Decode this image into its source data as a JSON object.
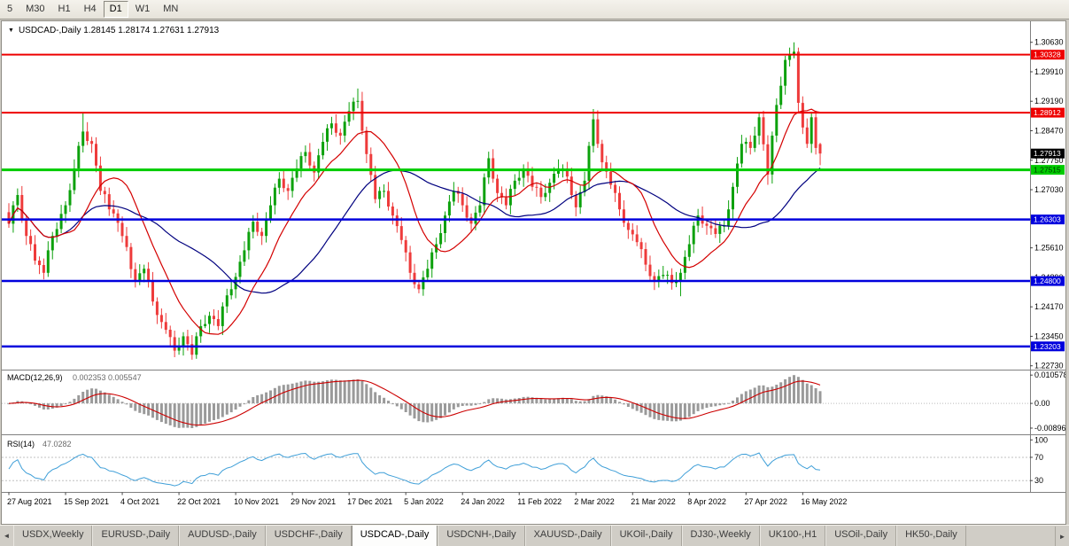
{
  "toolbar": {
    "timeframes": [
      "5",
      "M30",
      "H1",
      "H4",
      "D1",
      "W1",
      "MN"
    ],
    "active": "D1"
  },
  "chart": {
    "dropdown_icon": "▼",
    "header": "USDCAD-,Daily 1.28145 1.28174 1.27631 1.27913"
  },
  "chart_data": {
    "type": "candlestick",
    "symbol": "USDCAD-",
    "timeframe": "Daily",
    "current": {
      "open": "1.28145",
      "high": "1.28174",
      "low": "1.27631",
      "close": "1.27913"
    },
    "price_axis": {
      "range": {
        "max": 1.311,
        "min": 1.2268
      },
      "labels": [
        "1.30630",
        "1.29910",
        "1.29190",
        "1.28470",
        "1.27750",
        "1.27030",
        "1.26310",
        "1.25610",
        "1.24890",
        "1.24170",
        "1.23450",
        "1.22730"
      ]
    },
    "hlines": [
      {
        "price": 1.30328,
        "label": "1.30328",
        "color": "#ee0000",
        "width": 2,
        "badge_text_color": "#ffffff"
      },
      {
        "price": 1.28912,
        "label": "1.28912",
        "color": "#ee0000",
        "width": 2,
        "badge_text_color": "#ffffff"
      },
      {
        "price": 1.27515,
        "label": "1.27515",
        "color": "#00cc00",
        "width": 3,
        "badge_text_color": "#003300"
      },
      {
        "price": 1.26303,
        "label": "1.26303",
        "color": "#0000dd",
        "width": 2.5,
        "badge_text_color": "#ffffff"
      },
      {
        "price": 1.248,
        "label": "1.24800",
        "color": "#0000dd",
        "width": 2.5,
        "badge_text_color": "#ffffff"
      },
      {
        "price": 1.23203,
        "label": "1.23203",
        "color": "#0000dd",
        "width": 2.5,
        "badge_text_color": "#ffffff"
      }
    ],
    "current_price": {
      "price": 1.27913,
      "label": "1.27913",
      "badge_color": "#000000"
    },
    "time_axis": [
      "27 Aug 2021",
      "15 Sep 2021",
      "4 Oct 2021",
      "22 Oct 2021",
      "10 Nov 2021",
      "29 Nov 2021",
      "17 Dec 2021",
      "5 Jan 2022",
      "24 Jan 2022",
      "11 Feb 2022",
      "2 Mar 2022",
      "21 Mar 2022",
      "8 Apr 2022",
      "27 Apr 2022",
      "16 May 2022"
    ],
    "colors": {
      "up": "#0ca10c",
      "down": "#ee3b3b",
      "ma_fast": "#d40000",
      "ma_slow": "#00007f",
      "macd_hist": "#9a9a9a",
      "macd_signal": "#cc0000",
      "rsi": "#3f9fd8"
    },
    "indicators": {
      "macd": {
        "label": "MACD(12,26,9)",
        "values": "0.002353 0.005547",
        "scale_labels": [
          "0.010578",
          "0.00",
          "-0.00896"
        ]
      },
      "rsi": {
        "label": "RSI(14)",
        "value": "47.0282",
        "scale_labels": [
          "100",
          "70",
          "30"
        ],
        "levels": [
          70,
          30
        ]
      }
    },
    "candles": [
      [
        1.2648,
        1.267,
        1.261,
        1.262
      ],
      [
        1.262,
        1.2675,
        1.2598,
        1.2665
      ],
      [
        1.2665,
        1.2706,
        1.2649,
        1.269
      ],
      [
        1.269,
        1.2712,
        1.2622,
        1.2632
      ],
      [
        1.2632,
        1.2642,
        1.2568,
        1.259
      ],
      [
        1.259,
        1.2606,
        1.2554,
        1.257
      ],
      [
        1.257,
        1.2592,
        1.252,
        1.253
      ],
      [
        1.253,
        1.254,
        1.2497,
        1.2519
      ],
      [
        1.2519,
        1.2535,
        1.2484,
        1.25
      ],
      [
        1.25,
        1.2577,
        1.249,
        1.2555
      ],
      [
        1.2555,
        1.26,
        1.2533,
        1.259
      ],
      [
        1.259,
        1.2623,
        1.2574,
        1.2607
      ],
      [
        1.2607,
        1.2666,
        1.2597,
        1.2644
      ],
      [
        1.2644,
        1.2675,
        1.2622,
        1.2665
      ],
      [
        1.2665,
        1.2718,
        1.2649,
        1.2702
      ],
      [
        1.2702,
        1.2777,
        1.2692,
        1.2755
      ],
      [
        1.2755,
        1.282,
        1.2733,
        1.281
      ],
      [
        1.281,
        1.289,
        1.2794,
        1.2845
      ],
      [
        1.2845,
        1.2868,
        1.2812,
        1.2822
      ],
      [
        1.2822,
        1.2832,
        1.2793,
        1.2815
      ],
      [
        1.2815,
        1.2831,
        1.2746,
        1.2762
      ],
      [
        1.2762,
        1.2784,
        1.269,
        1.27
      ],
      [
        1.27,
        1.271,
        1.267,
        1.2692
      ],
      [
        1.2692,
        1.2708,
        1.2639,
        1.2655
      ],
      [
        1.2655,
        1.2677,
        1.2635,
        1.2645
      ],
      [
        1.2645,
        1.2655,
        1.26,
        1.2622
      ],
      [
        1.2622,
        1.2638,
        1.2574,
        1.259
      ],
      [
        1.259,
        1.2612,
        1.2553,
        1.2563
      ],
      [
        1.2563,
        1.2573,
        1.2487,
        1.2509
      ],
      [
        1.2509,
        1.2525,
        1.2464,
        1.248
      ],
      [
        1.248,
        1.2521,
        1.247,
        1.2499
      ],
      [
        1.2499,
        1.252,
        1.2477,
        1.251
      ],
      [
        1.251,
        1.2526,
        1.2464,
        1.248
      ],
      [
        1.248,
        1.2502,
        1.242,
        1.243
      ],
      [
        1.243,
        1.244,
        1.2375,
        1.2397
      ],
      [
        1.2397,
        1.2413,
        1.2364,
        1.238
      ],
      [
        1.238,
        1.2402,
        1.2351,
        1.2361
      ],
      [
        1.2361,
        1.2371,
        1.2321,
        1.2343
      ],
      [
        1.2343,
        1.2359,
        1.2294,
        1.231
      ],
      [
        1.231,
        1.2342,
        1.23,
        1.232
      ],
      [
        1.232,
        1.2355,
        1.2298,
        1.2345
      ],
      [
        1.2345,
        1.2361,
        1.231,
        1.2326
      ],
      [
        1.2326,
        1.2348,
        1.2288,
        1.23
      ],
      [
        1.23,
        1.2355,
        1.229,
        1.2345
      ],
      [
        1.2345,
        1.2386,
        1.2329,
        1.237
      ],
      [
        1.237,
        1.2397,
        1.2365,
        1.2375
      ],
      [
        1.2375,
        1.2405,
        1.2353,
        1.2395
      ],
      [
        1.2395,
        1.2411,
        1.2371,
        1.2387
      ],
      [
        1.2387,
        1.2409,
        1.236,
        1.237
      ],
      [
        1.237,
        1.2428,
        1.2348,
        1.2418
      ],
      [
        1.2418,
        1.2461,
        1.2402,
        1.2445
      ],
      [
        1.2445,
        1.2482,
        1.2435,
        1.246
      ],
      [
        1.246,
        1.25,
        1.2438,
        1.249
      ],
      [
        1.249,
        1.2543,
        1.2474,
        1.2527
      ],
      [
        1.2527,
        1.2577,
        1.2517,
        1.2555
      ],
      [
        1.2555,
        1.261,
        1.2533,
        1.26
      ],
      [
        1.26,
        1.2641,
        1.2584,
        1.2625
      ],
      [
        1.2625,
        1.2647,
        1.259,
        1.26
      ],
      [
        1.26,
        1.261,
        1.2568,
        1.259
      ],
      [
        1.259,
        1.2648,
        1.2574,
        1.2632
      ],
      [
        1.2632,
        1.2687,
        1.2622,
        1.2665
      ],
      [
        1.2665,
        1.2718,
        1.2643,
        1.2708
      ],
      [
        1.2708,
        1.2746,
        1.2692,
        1.273
      ],
      [
        1.273,
        1.2752,
        1.2697,
        1.2707
      ],
      [
        1.2707,
        1.2717,
        1.2678,
        1.27
      ],
      [
        1.27,
        1.2748,
        1.2684,
        1.2732
      ],
      [
        1.2732,
        1.2777,
        1.2722,
        1.2755
      ],
      [
        1.2755,
        1.2795,
        1.2733,
        1.2785
      ],
      [
        1.2785,
        1.2811,
        1.2769,
        1.2795
      ],
      [
        1.2795,
        1.2817,
        1.2752,
        1.2762
      ],
      [
        1.2762,
        1.2772,
        1.2723,
        1.2745
      ],
      [
        1.2745,
        1.2803,
        1.2729,
        1.2787
      ],
      [
        1.2787,
        1.2842,
        1.2777,
        1.282
      ],
      [
        1.282,
        1.2863,
        1.2798,
        1.2853
      ],
      [
        1.2853,
        1.2881,
        1.2837,
        1.2865
      ],
      [
        1.2865,
        1.2887,
        1.2832,
        1.2842
      ],
      [
        1.2842,
        1.2852,
        1.2813,
        1.2835
      ],
      [
        1.2835,
        1.2885,
        1.2819,
        1.2869
      ],
      [
        1.2869,
        1.2917,
        1.2859,
        1.2895
      ],
      [
        1.2895,
        1.2928,
        1.2873,
        1.2918
      ],
      [
        1.2918,
        1.295,
        1.2902,
        1.292
      ],
      [
        1.292,
        1.2942,
        1.2837,
        1.2847
      ],
      [
        1.2847,
        1.2857,
        1.2768,
        1.279
      ],
      [
        1.279,
        1.2806,
        1.2723,
        1.2739
      ],
      [
        1.2739,
        1.2761,
        1.267,
        1.268
      ],
      [
        1.268,
        1.271,
        1.2658,
        1.27
      ],
      [
        1.27,
        1.2716,
        1.2684,
        1.27
      ],
      [
        1.27,
        1.2722,
        1.2652,
        1.2662
      ],
      [
        1.2662,
        1.2672,
        1.2618,
        1.264
      ],
      [
        1.264,
        1.2656,
        1.2598,
        1.2614
      ],
      [
        1.2614,
        1.2636,
        1.257,
        1.258
      ],
      [
        1.258,
        1.259,
        1.2528,
        1.255
      ],
      [
        1.255,
        1.2566,
        1.2484,
        1.25
      ],
      [
        1.25,
        1.2522,
        1.2462,
        1.2472
      ],
      [
        1.2472,
        1.2482,
        1.245,
        1.246
      ],
      [
        1.246,
        1.2505,
        1.2444,
        1.2489
      ],
      [
        1.2489,
        1.2532,
        1.2479,
        1.251
      ],
      [
        1.251,
        1.256,
        1.2488,
        1.255
      ],
      [
        1.255,
        1.2586,
        1.2534,
        1.257
      ],
      [
        1.257,
        1.2619,
        1.256,
        1.2597
      ],
      [
        1.2597,
        1.265,
        1.2575,
        1.264
      ],
      [
        1.264,
        1.269,
        1.2624,
        1.2674
      ],
      [
        1.2674,
        1.2722,
        1.2664,
        1.27
      ],
      [
        1.27,
        1.271,
        1.2671,
        1.2693
      ],
      [
        1.2693,
        1.2709,
        1.2649,
        1.2665
      ],
      [
        1.2665,
        1.2687,
        1.2625,
        1.2635
      ],
      [
        1.2635,
        1.2645,
        1.2598,
        1.262
      ],
      [
        1.262,
        1.2663,
        1.2604,
        1.2647
      ],
      [
        1.2647,
        1.2687,
        1.2637,
        1.2665
      ],
      [
        1.2665,
        1.2743,
        1.2643,
        1.2733
      ],
      [
        1.2733,
        1.2796,
        1.2717,
        1.278
      ],
      [
        1.278,
        1.2802,
        1.272,
        1.273
      ],
      [
        1.273,
        1.274,
        1.2673,
        1.2695
      ],
      [
        1.2695,
        1.2711,
        1.2668,
        1.2684
      ],
      [
        1.2684,
        1.2706,
        1.2655,
        1.2665
      ],
      [
        1.2665,
        1.2715,
        1.2643,
        1.2705
      ],
      [
        1.2705,
        1.2741,
        1.2689,
        1.2725
      ],
      [
        1.2725,
        1.2754,
        1.2715,
        1.2732
      ],
      [
        1.2732,
        1.2765,
        1.271,
        1.2755
      ],
      [
        1.2755,
        1.2771,
        1.2721,
        1.2737
      ],
      [
        1.2737,
        1.2759,
        1.27,
        1.271
      ],
      [
        1.271,
        1.272,
        1.2686,
        1.2708
      ],
      [
        1.2708,
        1.2724,
        1.2669,
        1.2685
      ],
      [
        1.2685,
        1.2717,
        1.2675,
        1.2695
      ],
      [
        1.2695,
        1.273,
        1.2673,
        1.272
      ],
      [
        1.272,
        1.2758,
        1.2704,
        1.2742
      ],
      [
        1.2742,
        1.2777,
        1.2732,
        1.2755
      ],
      [
        1.2755,
        1.2765,
        1.2733,
        1.2755
      ],
      [
        1.2755,
        1.2771,
        1.2719,
        1.2735
      ],
      [
        1.2735,
        1.2757,
        1.268,
        1.269
      ],
      [
        1.269,
        1.27,
        1.2638,
        1.266
      ],
      [
        1.266,
        1.2713,
        1.2644,
        1.2697
      ],
      [
        1.2697,
        1.2747,
        1.2687,
        1.2725
      ],
      [
        1.2725,
        1.282,
        1.2703,
        1.281
      ],
      [
        1.281,
        1.29,
        1.2794,
        1.2875
      ],
      [
        1.2875,
        1.2897,
        1.2805,
        1.2815
      ],
      [
        1.2815,
        1.2825,
        1.2748,
        1.277
      ],
      [
        1.277,
        1.2786,
        1.2731,
        1.2747
      ],
      [
        1.2747,
        1.2769,
        1.2705,
        1.2715
      ],
      [
        1.2715,
        1.2725,
        1.2673,
        1.2695
      ],
      [
        1.2695,
        1.2711,
        1.2639,
        1.2655
      ],
      [
        1.2655,
        1.2677,
        1.2612,
        1.2622
      ],
      [
        1.2622,
        1.2632,
        1.2583,
        1.2605
      ],
      [
        1.2605,
        1.2621,
        1.2578,
        1.2594
      ],
      [
        1.2594,
        1.2616,
        1.2565,
        1.2575
      ],
      [
        1.2575,
        1.2585,
        1.2536,
        1.2558
      ],
      [
        1.2558,
        1.2574,
        1.2504,
        1.252
      ],
      [
        1.252,
        1.2542,
        1.2482,
        1.2492
      ],
      [
        1.2492,
        1.2502,
        1.2458,
        1.248
      ],
      [
        1.248,
        1.2508,
        1.2464,
        1.2492
      ],
      [
        1.2492,
        1.2517,
        1.2485,
        1.2495
      ],
      [
        1.2495,
        1.2505,
        1.2473,
        1.2495
      ],
      [
        1.2495,
        1.2511,
        1.2459,
        1.2475
      ],
      [
        1.2475,
        1.2502,
        1.2465,
        1.248
      ],
      [
        1.248,
        1.251,
        1.2443,
        1.25
      ],
      [
        1.25,
        1.2555,
        1.2484,
        1.2539
      ],
      [
        1.2539,
        1.2592,
        1.2529,
        1.257
      ],
      [
        1.257,
        1.2625,
        1.2548,
        1.2615
      ],
      [
        1.2615,
        1.2656,
        1.2599,
        1.264
      ],
      [
        1.264,
        1.2662,
        1.261,
        1.262
      ],
      [
        1.262,
        1.263,
        1.2593,
        1.2615
      ],
      [
        1.2615,
        1.2631,
        1.2593,
        1.2609
      ],
      [
        1.2609,
        1.2631,
        1.2585,
        1.2595
      ],
      [
        1.2595,
        1.2625,
        1.2573,
        1.2615
      ],
      [
        1.2615,
        1.2631,
        1.2599,
        1.2615
      ],
      [
        1.2615,
        1.2677,
        1.2605,
        1.2655
      ],
      [
        1.2655,
        1.272,
        1.2633,
        1.271
      ],
      [
        1.271,
        1.2783,
        1.2694,
        1.2767
      ],
      [
        1.2767,
        1.2837,
        1.2757,
        1.2815
      ],
      [
        1.2815,
        1.283,
        1.2793,
        1.282
      ],
      [
        1.282,
        1.2836,
        1.2789,
        1.2805
      ],
      [
        1.2805,
        1.2857,
        1.2795,
        1.2835
      ],
      [
        1.2835,
        1.289,
        1.2813,
        1.288
      ],
      [
        1.288,
        1.2896,
        1.2798,
        1.2814
      ],
      [
        1.2814,
        1.2836,
        1.2715,
        1.274
      ],
      [
        1.274,
        1.2845,
        1.2718,
        1.2835
      ],
      [
        1.2835,
        1.2926,
        1.2819,
        1.291
      ],
      [
        1.291,
        1.2979,
        1.29,
        1.2957
      ],
      [
        1.2957,
        1.303,
        1.2935,
        1.302
      ],
      [
        1.302,
        1.305,
        1.3004,
        1.3034
      ],
      [
        1.3034,
        1.3063,
        1.3024,
        1.304
      ],
      [
        1.304,
        1.305,
        1.2893,
        1.2915
      ],
      [
        1.2915,
        1.2931,
        1.2839,
        1.2855
      ],
      [
        1.2855,
        1.2877,
        1.2805,
        1.2815
      ],
      [
        1.2815,
        1.289,
        1.2793,
        1.288
      ],
      [
        1.288,
        1.2896,
        1.2789,
        1.2805
      ],
      [
        1.28145,
        1.28174,
        1.27631,
        1.27913
      ]
    ]
  },
  "tabs": {
    "scroll_left_icon": "◄",
    "scroll_right_icon": "►",
    "active_index": 4,
    "items": [
      "USDX,Weekly",
      "EURUSD-,Daily",
      "AUDUSD-,Daily",
      "USDCHF-,Daily",
      "USDCAD-,Daily",
      "USDCNH-,Daily",
      "XAUUSD-,Daily",
      "UKOil-,Daily",
      "DJ30-,Weekly",
      "UK100-,H1",
      "USOil-,Daily",
      "HK50-,Daily"
    ]
  }
}
